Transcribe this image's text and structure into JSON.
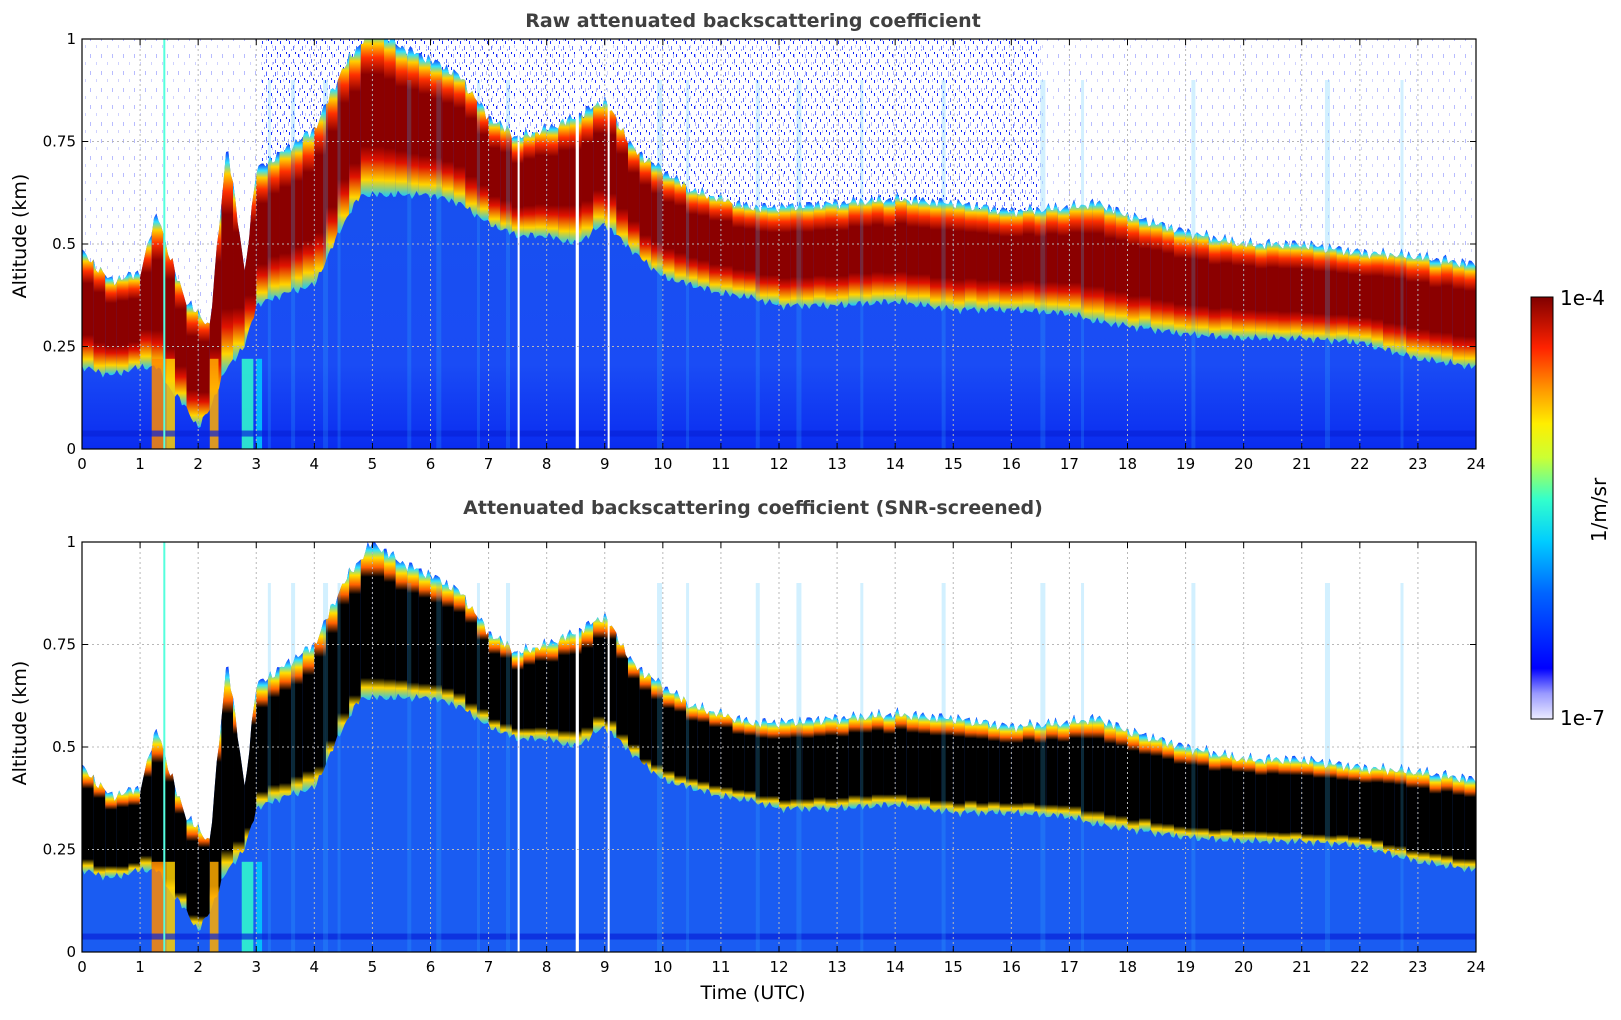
{
  "chart_data": [
    {
      "type": "heatmap",
      "title": "Raw attenuated backscattering coefficient",
      "xlabel": "",
      "ylabel": "Altitude (km)",
      "xlim": [
        0,
        24
      ],
      "ylim": [
        0,
        1
      ],
      "xticks": [
        "0",
        "1",
        "2",
        "3",
        "4",
        "5",
        "6",
        "7",
        "8",
        "9",
        "10",
        "11",
        "12",
        "13",
        "14",
        "15",
        "16",
        "17",
        "18",
        "19",
        "20",
        "21",
        "22",
        "23",
        "24"
      ],
      "yticks": [
        "0",
        "0.25",
        "0.5",
        "0.75",
        "1"
      ],
      "grid": true,
      "screened": false,
      "layer_top_km": {
        "time_utc": [
          0,
          0.5,
          1,
          1.3,
          1.5,
          1.8,
          2,
          2.2,
          2.5,
          2.8,
          3,
          3.5,
          4,
          4.5,
          4.8,
          5,
          5.5,
          6,
          6.5,
          7,
          7.5,
          8,
          8.5,
          9,
          9.5,
          10,
          10.5,
          11,
          11.5,
          12,
          13,
          14,
          15,
          16,
          17,
          17.5,
          18,
          19,
          20,
          21,
          22,
          23,
          24
        ],
        "values": [
          0.45,
          0.38,
          0.4,
          0.55,
          0.44,
          0.33,
          0.3,
          0.27,
          0.72,
          0.4,
          0.65,
          0.7,
          0.75,
          0.9,
          0.96,
          1.0,
          0.95,
          0.92,
          0.88,
          0.78,
          0.73,
          0.75,
          0.78,
          0.82,
          0.7,
          0.65,
          0.6,
          0.58,
          0.56,
          0.56,
          0.57,
          0.58,
          0.57,
          0.55,
          0.56,
          0.57,
          0.54,
          0.5,
          0.47,
          0.47,
          0.45,
          0.44,
          0.42
        ]
      },
      "layer_base_km": {
        "time_utc": [
          0,
          0.5,
          1,
          1.3,
          1.5,
          1.8,
          2,
          2.2,
          2.5,
          2.8,
          3,
          3.5,
          4,
          4.5,
          4.8,
          5,
          5.5,
          6,
          6.5,
          7,
          7.5,
          8,
          8.5,
          9,
          9.5,
          10,
          10.5,
          11,
          11.5,
          12,
          13,
          14,
          15,
          16,
          17,
          17.5,
          18,
          19,
          20,
          21,
          22,
          23,
          24
        ],
        "values": [
          0.2,
          0.18,
          0.2,
          0.2,
          0.15,
          0.1,
          0.05,
          0.1,
          0.2,
          0.25,
          0.35,
          0.38,
          0.4,
          0.55,
          0.62,
          0.62,
          0.62,
          0.62,
          0.6,
          0.55,
          0.52,
          0.52,
          0.5,
          0.55,
          0.48,
          0.42,
          0.4,
          0.38,
          0.37,
          0.35,
          0.35,
          0.36,
          0.34,
          0.34,
          0.33,
          0.31,
          0.3,
          0.28,
          0.27,
          0.27,
          0.26,
          0.22,
          0.2
        ]
      }
    },
    {
      "type": "heatmap",
      "title": "Attenuated backscattering coefficient (SNR-screened)",
      "xlabel": "Time (UTC)",
      "ylabel": "Altitude (km)",
      "xlim": [
        0,
        24
      ],
      "ylim": [
        0,
        1
      ],
      "xticks": [
        "0",
        "1",
        "2",
        "3",
        "4",
        "5",
        "6",
        "7",
        "8",
        "9",
        "10",
        "11",
        "12",
        "13",
        "14",
        "15",
        "16",
        "17",
        "18",
        "19",
        "20",
        "21",
        "22",
        "23",
        "24"
      ],
      "yticks": [
        "0",
        "0.25",
        "0.5",
        "0.75",
        "1"
      ],
      "grid": true,
      "screened": true
    }
  ],
  "colorbar": {
    "label": "1/m/sr",
    "max_label": "1e-4",
    "min_label": "1e-7",
    "colormap": "jet",
    "screened_saturation_color": "#000000"
  },
  "colors": {
    "title": "#404040",
    "grid": "#b8b8b8",
    "background": "#ffffff"
  }
}
